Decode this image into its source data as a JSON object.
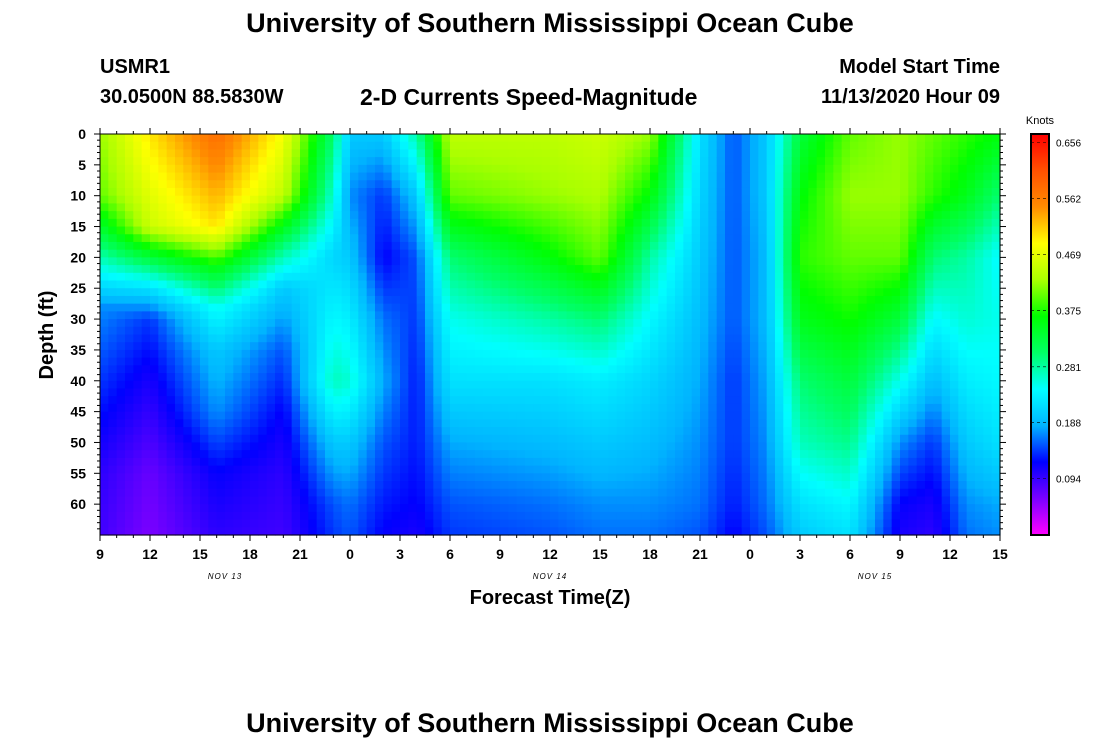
{
  "header": {
    "title": "University of Southern Mississippi Ocean Cube",
    "station": "USMR1",
    "coords": "30.0500N 88.5830W",
    "subtitle": "2-D Currents Speed-Magnitude",
    "start_label": "Model Start Time",
    "start_value": "11/13/2020 Hour 09"
  },
  "footer": {
    "title": "University of Southern Mississippi Ocean Cube"
  },
  "chart_data": {
    "type": "heatmap",
    "title": "2-D Currents Speed-Magnitude",
    "xlabel": "Forecast Time(Z)",
    "ylabel": "Depth (ft)",
    "x_hours": [
      0,
      54
    ],
    "y_range": [
      0,
      65
    ],
    "y_reversed": true,
    "x_ticks": [
      "9",
      "12",
      "15",
      "18",
      "21",
      "0",
      "3",
      "6",
      "9",
      "12",
      "15",
      "18",
      "21",
      "0",
      "3",
      "6",
      "9",
      "12",
      "15"
    ],
    "date_labels": [
      {
        "label": "NOV 13",
        "hour": 7.5
      },
      {
        "label": "NOV 14",
        "hour": 27
      },
      {
        "label": "NOV 15",
        "hour": 46.5
      }
    ],
    "y_ticks": [
      0,
      5,
      10,
      15,
      20,
      25,
      30,
      35,
      40,
      45,
      50,
      55,
      60
    ],
    "colorbar": {
      "label": "Knots",
      "range": [
        0.0,
        0.67
      ],
      "ticks": [
        0.656,
        0.562,
        0.469,
        0.375,
        0.281,
        0.188,
        0.094
      ],
      "colors": [
        "#ff00ff",
        "#7a00ff",
        "#0000ff",
        "#00b4ff",
        "#00ffff",
        "#00ff66",
        "#00ff00",
        "#aaff00",
        "#ffff00",
        "#ff8c00",
        "#ff5000",
        "#ff0000"
      ]
    },
    "grid": false,
    "z_columns": [
      {
        "hour": 0,
        "depths": [
          0,
          10,
          18,
          25,
          28,
          40,
          55,
          65
        ],
        "values": [
          0.42,
          0.4,
          0.3,
          0.21,
          0.17,
          0.14,
          0.1,
          0.09
        ]
      },
      {
        "hour": 3,
        "depths": [
          0,
          15,
          20,
          25,
          30,
          40,
          55,
          65
        ],
        "values": [
          0.5,
          0.45,
          0.33,
          0.22,
          0.14,
          0.11,
          0.07,
          0.06
        ]
      },
      {
        "hour": 7,
        "depths": [
          0,
          15,
          22,
          28,
          35,
          45,
          55,
          65
        ],
        "values": [
          0.58,
          0.5,
          0.35,
          0.25,
          0.2,
          0.17,
          0.12,
          0.1
        ]
      },
      {
        "hour": 11,
        "depths": [
          0,
          10,
          18,
          25,
          35,
          45,
          55,
          65
        ],
        "values": [
          0.48,
          0.44,
          0.3,
          0.2,
          0.15,
          0.12,
          0.1,
          0.09
        ]
      },
      {
        "hour": 14,
        "depths": [
          0,
          10,
          20,
          30,
          40,
          50,
          60,
          65
        ],
        "values": [
          0.3,
          0.26,
          0.21,
          0.24,
          0.27,
          0.2,
          0.15,
          0.14
        ]
      },
      {
        "hour": 15,
        "depths": [
          0,
          10,
          20,
          30,
          40,
          50,
          60,
          65
        ],
        "values": [
          0.2,
          0.17,
          0.2,
          0.23,
          0.26,
          0.2,
          0.16,
          0.15
        ]
      },
      {
        "hour": 17,
        "depths": [
          0,
          10,
          20,
          30,
          40,
          50,
          60,
          65
        ],
        "values": [
          0.2,
          0.14,
          0.12,
          0.16,
          0.18,
          0.15,
          0.13,
          0.12
        ]
      },
      {
        "hour": 19,
        "depths": [
          0,
          10,
          20,
          30,
          40,
          50,
          60,
          65
        ],
        "values": [
          0.28,
          0.2,
          0.15,
          0.14,
          0.13,
          0.13,
          0.12,
          0.11
        ]
      },
      {
        "hour": 21,
        "depths": [
          0,
          10,
          20,
          30,
          40,
          50,
          60,
          65
        ],
        "values": [
          0.44,
          0.4,
          0.3,
          0.25,
          0.22,
          0.18,
          0.15,
          0.14
        ]
      },
      {
        "hour": 27,
        "depths": [
          0,
          10,
          20,
          30,
          40,
          50,
          60,
          65
        ],
        "values": [
          0.44,
          0.42,
          0.36,
          0.28,
          0.22,
          0.19,
          0.16,
          0.15
        ]
      },
      {
        "hour": 30,
        "depths": [
          0,
          10,
          20,
          30,
          40,
          50,
          60,
          65
        ],
        "values": [
          0.45,
          0.43,
          0.4,
          0.3,
          0.23,
          0.2,
          0.17,
          0.16
        ]
      },
      {
        "hour": 33,
        "depths": [
          0,
          10,
          20,
          30,
          40,
          50,
          60,
          65
        ],
        "values": [
          0.42,
          0.36,
          0.28,
          0.24,
          0.21,
          0.19,
          0.17,
          0.16
        ]
      },
      {
        "hour": 36,
        "depths": [
          0,
          10,
          20,
          30,
          40,
          50,
          60,
          65
        ],
        "values": [
          0.22,
          0.21,
          0.2,
          0.19,
          0.18,
          0.17,
          0.16,
          0.15
        ]
      },
      {
        "hour": 38,
        "depths": [
          0,
          10,
          20,
          30,
          40,
          50,
          60,
          65
        ],
        "values": [
          0.15,
          0.15,
          0.15,
          0.15,
          0.14,
          0.14,
          0.13,
          0.12
        ]
      },
      {
        "hour": 40,
        "depths": [
          0,
          10,
          20,
          30,
          40,
          50,
          60,
          65
        ],
        "values": [
          0.2,
          0.2,
          0.19,
          0.19,
          0.18,
          0.17,
          0.16,
          0.15
        ]
      },
      {
        "hour": 42,
        "depths": [
          0,
          10,
          20,
          30,
          40,
          50,
          60,
          65
        ],
        "values": [
          0.33,
          0.36,
          0.38,
          0.35,
          0.3,
          0.27,
          0.22,
          0.2
        ]
      },
      {
        "hour": 45,
        "depths": [
          0,
          10,
          20,
          30,
          40,
          50,
          60,
          65
        ],
        "values": [
          0.4,
          0.42,
          0.4,
          0.37,
          0.33,
          0.29,
          0.24,
          0.22
        ]
      },
      {
        "hour": 48,
        "depths": [
          0,
          10,
          20,
          30,
          40,
          50,
          60,
          65
        ],
        "values": [
          0.42,
          0.42,
          0.4,
          0.33,
          0.25,
          0.17,
          0.12,
          0.11
        ]
      },
      {
        "hour": 50,
        "depths": [
          0,
          10,
          20,
          30,
          40,
          50,
          60,
          65
        ],
        "values": [
          0.4,
          0.38,
          0.3,
          0.24,
          0.19,
          0.14,
          0.11,
          0.1
        ]
      },
      {
        "hour": 52,
        "depths": [
          0,
          10,
          20,
          30,
          40,
          50,
          60,
          65
        ],
        "values": [
          0.38,
          0.35,
          0.28,
          0.26,
          0.23,
          0.2,
          0.17,
          0.16
        ]
      },
      {
        "hour": 54,
        "depths": [
          0,
          10,
          20,
          30,
          40,
          50,
          60,
          65
        ],
        "values": [
          0.36,
          0.3,
          0.24,
          0.25,
          0.24,
          0.22,
          0.18,
          0.17
        ]
      }
    ]
  }
}
